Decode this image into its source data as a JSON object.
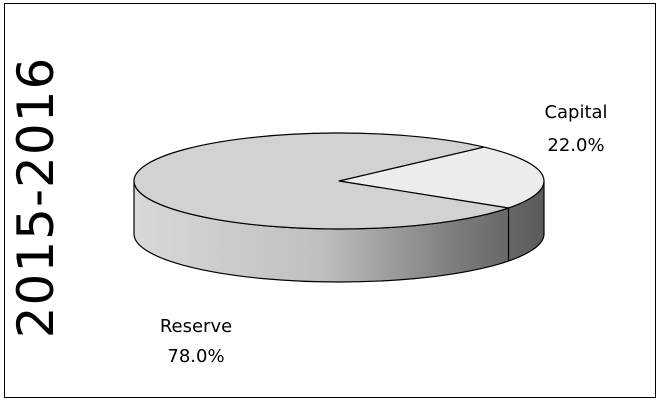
{
  "chart_data": {
    "type": "pie",
    "title": "2015-2016",
    "slices": [
      {
        "label": "Capital",
        "value": 22.0,
        "display": "22.0%",
        "color": "#ececec"
      },
      {
        "label": "Reserve",
        "value": 78.0,
        "display": "78.0%",
        "color": "#d2d2d2"
      }
    ],
    "style": "3d"
  }
}
